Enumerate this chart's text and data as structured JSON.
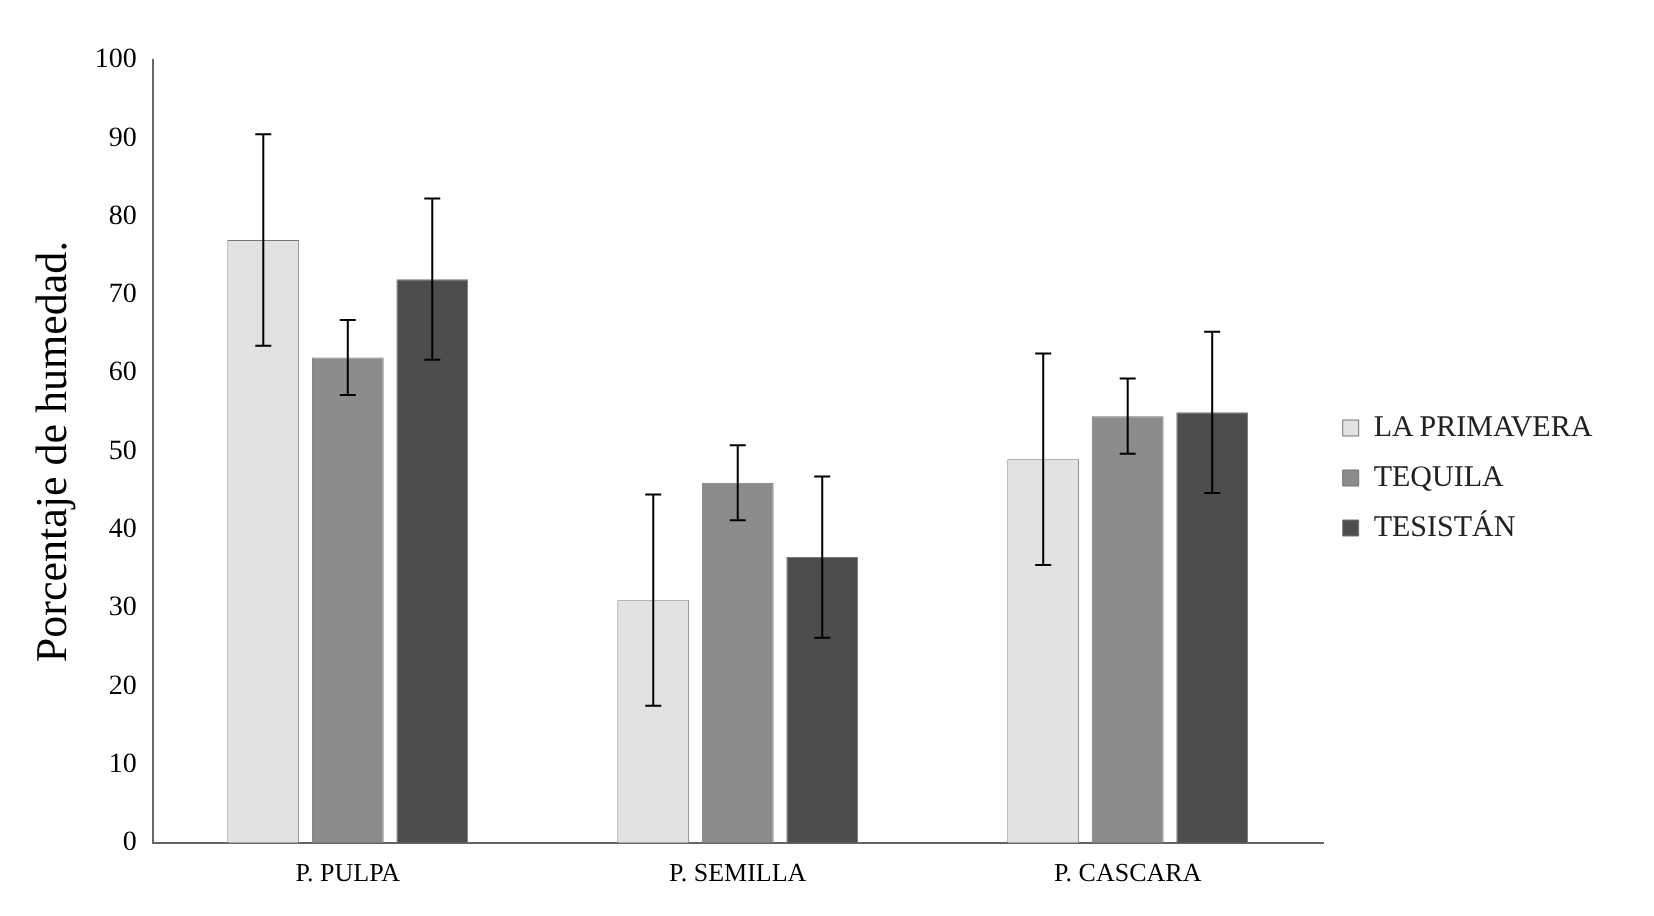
{
  "chart_data": {
    "type": "bar",
    "ylabel": "Porcentaje de humedad.",
    "categories": [
      "P. PULPA",
      "P. SEMILLA",
      "P. CASCARA"
    ],
    "series": [
      {
        "name": "LA PRIMAVERA",
        "color": "#e2e2e2",
        "values": [
          77,
          31,
          49
        ],
        "errors": [
          13.5,
          13.5,
          13.5
        ]
      },
      {
        "name": "TEQUILA",
        "color": "#8c8c8c",
        "values": [
          62,
          46,
          54.5
        ],
        "errors": [
          4.8,
          4.8,
          4.8
        ]
      },
      {
        "name": "TESISTÁN",
        "color": "#4d4d4d",
        "values": [
          72,
          36.5,
          55
        ],
        "errors": [
          10.3,
          10.3,
          10.3
        ]
      }
    ],
    "ylim": [
      0,
      100
    ],
    "yticks": [
      0,
      10,
      20,
      30,
      40,
      50,
      60,
      70,
      80,
      90,
      100
    ],
    "grid": false,
    "legend": "right"
  }
}
